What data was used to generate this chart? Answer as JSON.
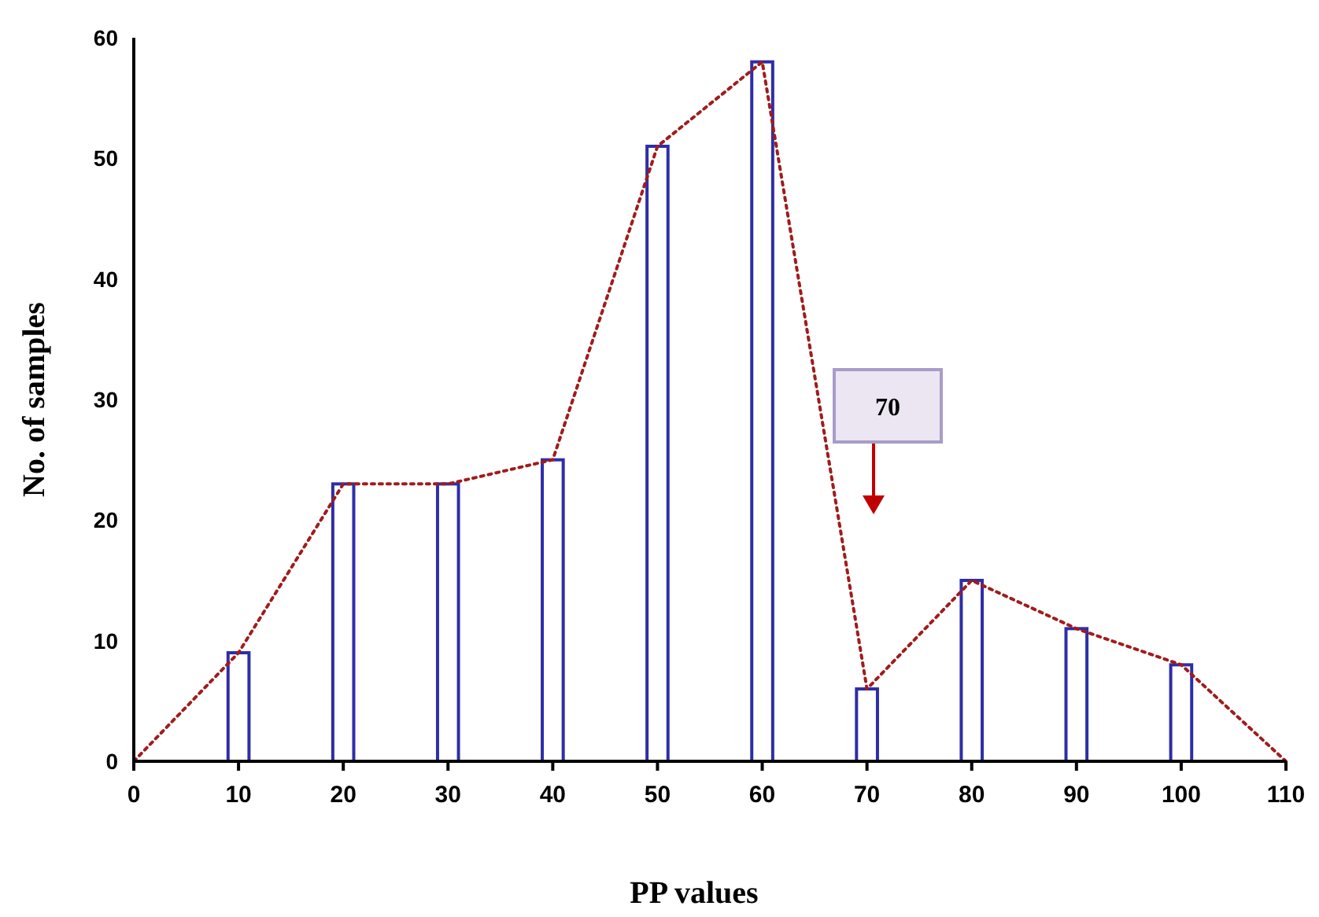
{
  "chart_data": {
    "type": "bar",
    "xlabel": "PP values",
    "ylabel": "No. of samples",
    "xlim": [
      0,
      110
    ],
    "xticks": [
      0,
      10,
      20,
      30,
      40,
      50,
      60,
      70,
      80,
      90,
      100,
      110
    ],
    "ylim": [
      0,
      60
    ],
    "yticks": [
      0,
      10,
      20,
      30,
      40,
      50,
      60
    ],
    "grid": false,
    "series": [
      {
        "color": "#2e2ea8",
        "x": [
          10,
          20,
          30,
          40,
          50,
          60,
          70,
          80,
          90,
          100
        ],
        "values": [
          9,
          23,
          23,
          25,
          51,
          58,
          6,
          15,
          11,
          8
        ]
      },
      {
        "type": "line",
        "color": "#a01c1c",
        "line_style": "dotted",
        "marker": "none",
        "x": [
          0,
          10,
          20,
          30,
          40,
          50,
          60,
          70,
          80,
          90,
          100,
          110
        ],
        "values": [
          0,
          9,
          23,
          23,
          25,
          51,
          58,
          6,
          15,
          11,
          8,
          0
        ]
      }
    ],
    "annotations": [
      "70"
    ]
  }
}
